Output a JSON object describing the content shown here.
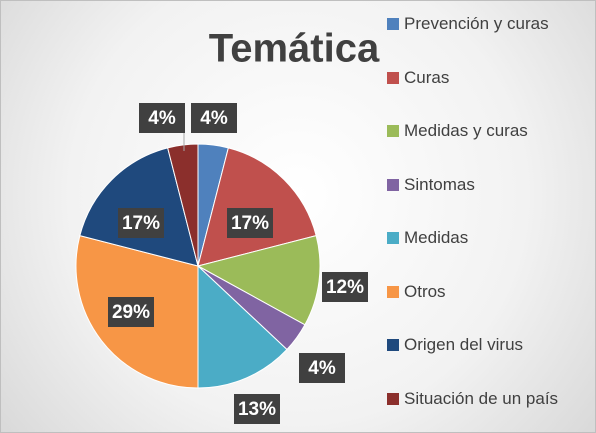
{
  "chart_data": {
    "type": "pie",
    "title": "Temática",
    "categories": [
      "Prevención y curas",
      "Curas",
      "Medidas y curas",
      "Sintomas",
      "Medidas",
      "Otros",
      "Origen del virus",
      "Situación de un país"
    ],
    "values": [
      4,
      17,
      12,
      4,
      13,
      29,
      17,
      4
    ],
    "value_labels": [
      "4%",
      "17%",
      "12%",
      "4%",
      "13%",
      "29%",
      "17%",
      "4%"
    ],
    "colors": [
      "#4f81bd",
      "#c0504d",
      "#9bbb59",
      "#8064a2",
      "#4bacc6",
      "#f79646",
      "#1f497d",
      "#8b2f2c"
    ],
    "legend": "right"
  }
}
